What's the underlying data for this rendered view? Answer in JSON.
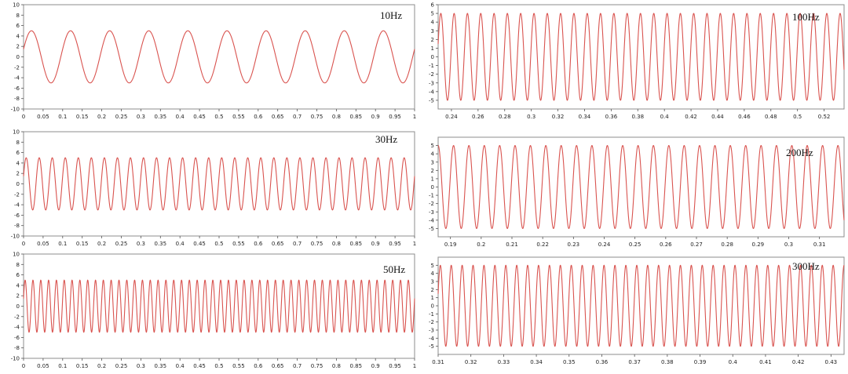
{
  "colors": {
    "line": "#d9534f",
    "frame": "#8c8c8c"
  },
  "chart_data": [
    {
      "type": "line",
      "title": "10Hz",
      "frequency_hz": 10,
      "amplitude": 5,
      "xlim": [
        0,
        1
      ],
      "ylim": [
        -10,
        10
      ],
      "xticks": [
        "0",
        "0.05",
        "0.1",
        "0.15",
        "0.2",
        "0.25",
        "0.3",
        "0.35",
        "0.4",
        "0.45",
        "0.5",
        "0.55",
        "0.6",
        "0.65",
        "0.7",
        "0.75",
        "0.8",
        "0.85",
        "0.9",
        "0.95",
        "1"
      ],
      "yticks": [
        "10",
        "8",
        "6",
        "4",
        "2",
        "0",
        "-2",
        "-4",
        "-6",
        "-8",
        "-10"
      ],
      "grid": false
    },
    {
      "type": "line",
      "title": "100Hz",
      "frequency_hz": 100,
      "amplitude": 5,
      "xlim": [
        0.23,
        0.535
      ],
      "ylim": [
        -6,
        6
      ],
      "xticks": [
        "0.24",
        "0.26",
        "0.28",
        "0.3",
        "0.32",
        "0.34",
        "0.36",
        "0.38",
        "0.4",
        "0.42",
        "0.44",
        "0.46",
        "0.48",
        "0.5",
        "0.52"
      ],
      "yticks": [
        "6",
        "5",
        "4",
        "3",
        "2",
        "1",
        "0",
        "-1",
        "-2",
        "-3",
        "-4",
        "-5"
      ],
      "grid": false
    },
    {
      "type": "line",
      "title": "30Hz",
      "frequency_hz": 30,
      "amplitude": 5,
      "xlim": [
        0,
        1
      ],
      "ylim": [
        -10,
        10
      ],
      "xticks": [
        "0",
        "0.05",
        "0.1",
        "0.15",
        "0.2",
        "0.25",
        "0.3",
        "0.35",
        "0.4",
        "0.45",
        "0.5",
        "0.55",
        "0.6",
        "0.65",
        "0.7",
        "0.75",
        "0.8",
        "0.85",
        "0.9",
        "0.95",
        "1"
      ],
      "yticks": [
        "10",
        "8",
        "6",
        "4",
        "2",
        "0",
        "-2",
        "-4",
        "-6",
        "-8",
        "-10"
      ],
      "grid": false
    },
    {
      "type": "line",
      "title": "200Hz",
      "frequency_hz": 200,
      "amplitude": 5,
      "xlim": [
        0.186,
        0.318
      ],
      "ylim": [
        -6,
        6
      ],
      "xticks": [
        "0.19",
        "0.2",
        "0.21",
        "0.22",
        "0.23",
        "0.24",
        "0.25",
        "0.26",
        "0.27",
        "0.28",
        "0.29",
        "0.3",
        "0.31"
      ],
      "yticks": [
        "5",
        "4",
        "3",
        "2",
        "1",
        "0",
        "-1",
        "-2",
        "-3",
        "-4",
        "-5"
      ],
      "grid": false
    },
    {
      "type": "line",
      "title": "50Hz",
      "frequency_hz": 50,
      "amplitude": 5,
      "xlim": [
        0,
        1
      ],
      "ylim": [
        -10,
        10
      ],
      "xticks": [
        "0",
        "0.05",
        "0.1",
        "0.15",
        "0.2",
        "0.25",
        "0.3",
        "0.35",
        "0.4",
        "0.45",
        "0.5",
        "0.55",
        "0.6",
        "0.65",
        "0.7",
        "0.75",
        "0.8",
        "0.85",
        "0.9",
        "0.95",
        "1"
      ],
      "yticks": [
        "10",
        "8",
        "6",
        "4",
        "2",
        "0",
        "-2",
        "-4",
        "-6",
        "-8",
        "-10"
      ],
      "grid": false
    },
    {
      "type": "line",
      "title": "300Hz",
      "frequency_hz": 300,
      "amplitude": 5,
      "xlim": [
        0.31,
        0.434
      ],
      "ylim": [
        -6,
        6
      ],
      "xticks": [
        "0.31",
        "0.32",
        "0.33",
        "0.34",
        "0.35",
        "0.36",
        "0.37",
        "0.38",
        "0.39",
        "0.4",
        "0.41",
        "0.42",
        "0.43"
      ],
      "yticks": [
        "5",
        "4",
        "3",
        "2",
        "1",
        "0",
        "-1",
        "-2",
        "-3",
        "-4",
        "-5"
      ],
      "grid": false
    }
  ]
}
